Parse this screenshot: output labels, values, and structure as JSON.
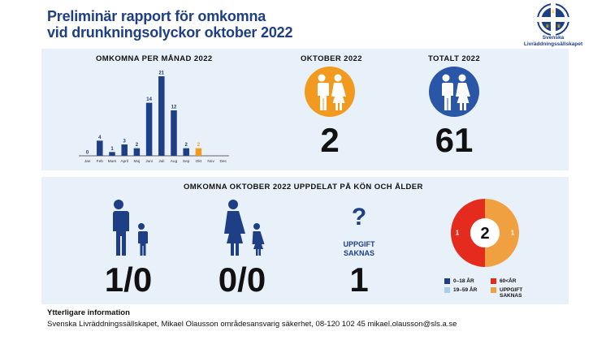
{
  "header": {
    "title_line1": "Preliminär rapport för omkomna",
    "title_line2": "vid drunkningsolyckor oktober 2022",
    "logo_text_line1": "Svenska",
    "logo_text_line2": "Livräddningssällskapet"
  },
  "colors": {
    "navy": "#1e3f86",
    "bar_blue": "#1e3f86",
    "october_orange": "#f29a1f",
    "circle_blue": "#2a56a8",
    "panel_bg": "#e8f1fa",
    "red": "#e52b1e",
    "light_blue": "#a9cdec"
  },
  "chart_data": [
    {
      "type": "bar",
      "title": "OMKOMNA PER MÅNAD 2022",
      "categories": [
        "Jan",
        "Feb",
        "Mars",
        "April",
        "Maj",
        "Juni",
        "Juli",
        "Aug",
        "Sep",
        "Okt",
        "Nov",
        "Dec"
      ],
      "values": [
        0,
        4,
        1,
        3,
        2,
        14,
        21,
        12,
        2,
        2,
        null,
        null
      ],
      "highlight_category": "Okt",
      "grid": false,
      "legend": "none"
    },
    {
      "type": "pie",
      "title": "",
      "center_label": "2",
      "slices": [
        {
          "name": "60<ÅR",
          "value": 1,
          "color": "#e52b1e"
        },
        {
          "name": "UPPGIFT SAKNAS",
          "value": 1,
          "color": "#f0a040"
        }
      ]
    }
  ],
  "stats": {
    "october_label": "OKTOBER 2022",
    "october_value": "2",
    "total_label": "TOTALT 2022",
    "total_value": "61"
  },
  "breakdown": {
    "title": "OMKOMNA OKTOBER 2022 UPPDELAT PÅ KÖN OCH ÅLDER",
    "male_value": "1/0",
    "female_value": "0/0",
    "unknown_symbol": "?",
    "unknown_label_line1": "UPPGIFT",
    "unknown_label_line2": "SAKNAS",
    "unknown_value": "1"
  },
  "legend": {
    "items": [
      {
        "label": "0–18 ÅR",
        "color": "#1e3f86"
      },
      {
        "label": "60<ÅR",
        "color": "#e52b1e"
      },
      {
        "label": "19–59 ÅR",
        "color": "#a9cdec"
      },
      {
        "label": "UPPGIFT",
        "label2": "SAKNAS",
        "color": "#f0a040"
      }
    ]
  },
  "footer": {
    "heading": "Ytterligare information",
    "line": "Svenska Livräddningssällskapet, Mikael Olausson områdesansvarig säkerhet, 08-120 102 45 mikael.olausson@sls.a.se"
  }
}
